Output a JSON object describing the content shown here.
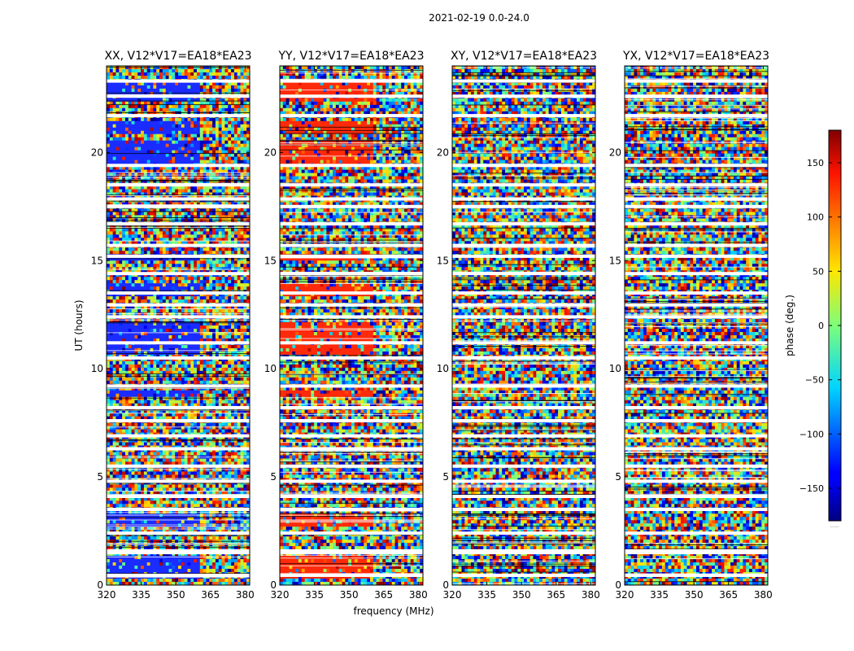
{
  "chart_data": {
    "type": "heatmap",
    "title": "2021-02-19 0.0-24.0",
    "xlabel": "frequency (MHz)",
    "ylabel": "UT (hours)",
    "xlim": [
      320,
      382
    ],
    "ylim": [
      0,
      24
    ],
    "x_ticks": [
      320,
      335,
      350,
      365,
      380
    ],
    "y_ticks": [
      0,
      5,
      10,
      15,
      20
    ],
    "panels": [
      {
        "title": "XX, V12*V17=EA18*EA23",
        "tint_color": "#1a2cff",
        "coherent_band": [
          320,
          360
        ]
      },
      {
        "title": "YY, V12*V17=EA18*EA23",
        "tint_color": "#ff2a0a",
        "coherent_band": [
          320,
          360
        ]
      },
      {
        "title": "XY, V12*V17=EA18*EA23",
        "tint_color": null,
        "coherent_band": null
      },
      {
        "title": "YX, V12*V17=EA18*EA23",
        "tint_color": null,
        "coherent_band": null
      }
    ],
    "flagged_hours": [
      0.45,
      1.5,
      1.58,
      2.4,
      3.5,
      4.1,
      4.8,
      5.5,
      6.3,
      6.9,
      7.6,
      8.2,
      9.2,
      10.5,
      11.2,
      12.4,
      12.95,
      13.5,
      14.4,
      15.2,
      15.7,
      16.7,
      17.5,
      17.85,
      18.5,
      19.4,
      21.7,
      22.6,
      23.3
    ],
    "coherent_hours": [
      [
        0.3,
        1.4
      ],
      [
        2.7,
        3.3
      ],
      [
        8.7,
        9.0
      ],
      [
        10.6,
        12.1
      ],
      [
        13.4,
        14.0
      ],
      [
        15.0,
        15.3
      ],
      [
        19.3,
        20.5
      ],
      [
        20.8,
        21.5
      ],
      [
        22.3,
        23.3
      ]
    ],
    "colorbar": {
      "label": "phase (deg.)",
      "min": -180,
      "max": 180,
      "ticks": [
        -150,
        -100,
        -50,
        0,
        50,
        100,
        150
      ],
      "tick_labels": [
        "−150",
        "−100",
        "−50",
        "0",
        "50",
        "100",
        "150"
      ],
      "footer": "......"
    }
  }
}
